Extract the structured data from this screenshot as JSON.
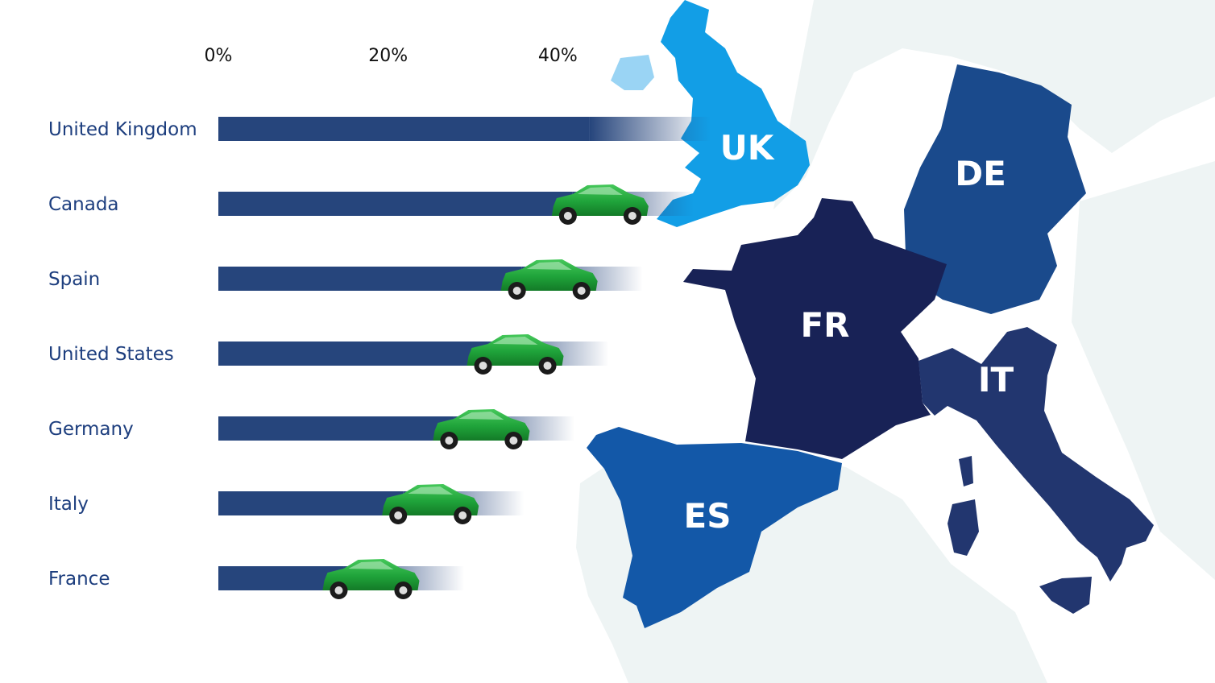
{
  "colors": {
    "bar": "#26457c",
    "car": "#1fa33a",
    "car_dark": "#137a27",
    "land": "#eef4f4",
    "uk": "#0d9ce6",
    "de": "#1a4a8c",
    "fr": "#182256",
    "it": "#22366f",
    "es": "#1358a8"
  },
  "chart_data": {
    "type": "bar",
    "orientation": "horizontal",
    "categories": [
      "United Kingdom",
      "Canada",
      "Spain",
      "United States",
      "Germany",
      "Italy",
      "France"
    ],
    "values": [
      58,
      56,
      50,
      46,
      42,
      36,
      29
    ],
    "xlim": [
      0,
      60
    ],
    "x_ticks": [
      "0%",
      "20%",
      "40%"
    ],
    "x_tick_values": [
      0,
      20,
      40
    ],
    "grid": false,
    "legend": "none",
    "marker_icon": "car-icon"
  },
  "map": {
    "regions": [
      {
        "code": "UK",
        "fill": "#0d9ce6"
      },
      {
        "code": "DE",
        "fill": "#1a4a8c"
      },
      {
        "code": "FR",
        "fill": "#182256"
      },
      {
        "code": "IT",
        "fill": "#22366f"
      },
      {
        "code": "ES",
        "fill": "#1358a8"
      }
    ]
  }
}
